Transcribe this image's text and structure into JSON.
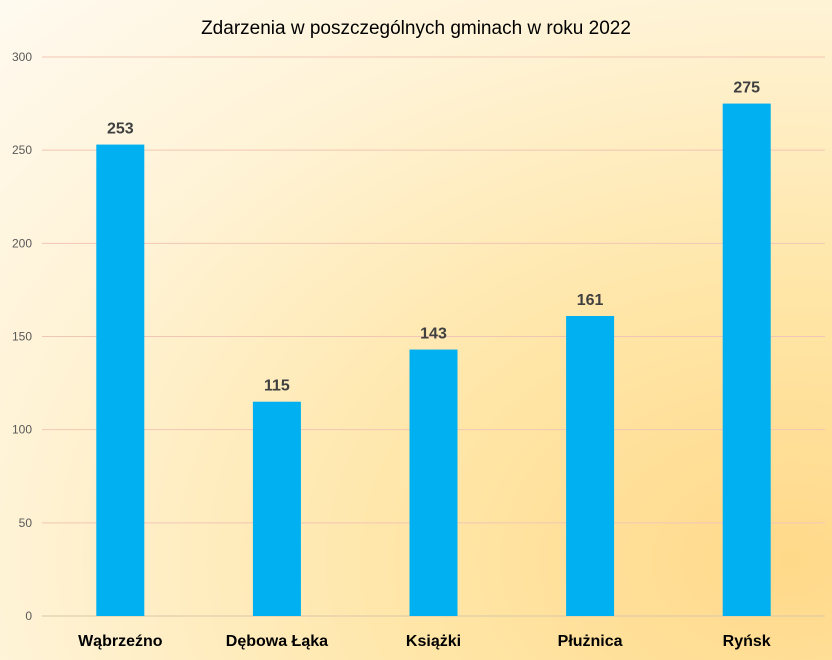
{
  "chart_data": {
    "type": "bar",
    "title": "Zdarzenia w poszczególnych gminach w roku 2022",
    "xlabel": "",
    "ylabel": "",
    "categories": [
      "Wąbrzeźno",
      "Dębowa Łąka",
      "Książki",
      "Płużnica",
      "Ryńsk"
    ],
    "values": [
      253,
      115,
      143,
      161,
      275
    ],
    "ylim": [
      0,
      300
    ],
    "yticks": [
      0,
      50,
      100,
      150,
      200,
      250,
      300
    ],
    "grid": true,
    "legend": "none",
    "bar_color": "#00B0F0",
    "gridline_color": "#F2C6B4"
  }
}
